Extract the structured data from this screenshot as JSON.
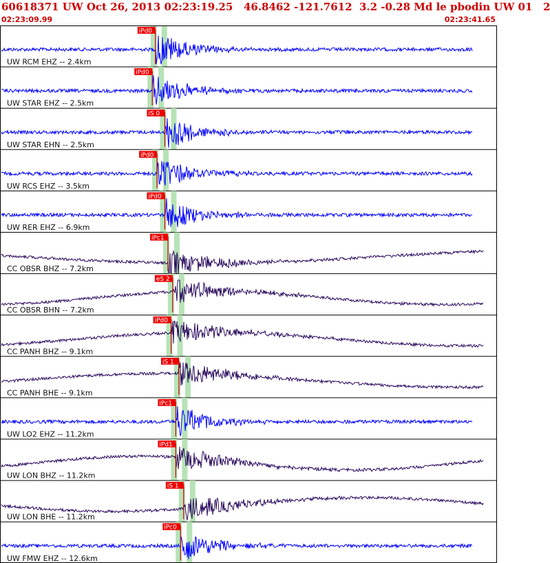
{
  "header": {
    "title": "60618371 UW Oct 26, 2013 02:23:19.25   46.8462 -121.7612  3.2 -0.28 Md le pbodin UW 01   2",
    "time_start": "02:23:09.99",
    "time_end": "02:23:41.65"
  },
  "colors": {
    "title": "#cc0000",
    "trace_short": "#0000ff",
    "trace_broadband": "#2a0a5e",
    "pick_box": "#ee0000",
    "pick_line": "#cc0000",
    "window_band": "#b7e3b7",
    "divider": "#000000"
  },
  "chart_data": {
    "type": "line",
    "x_unit": "time",
    "xlim": [
      "02:23:09.99",
      "02:23:41.65"
    ],
    "series": [
      {
        "name": "UW RCM EHZ -- 2.4km",
        "pick": "iPd0",
        "pick_time_s": 9.9,
        "kind": "short"
      },
      {
        "name": "UW STAR EHZ -- 2.5km",
        "pick": "iPd0",
        "pick_time_s": 9.7,
        "kind": "short"
      },
      {
        "name": "UW STAR EHN -- 2.5km",
        "pick": "iS 0",
        "pick_time_s": 10.5,
        "kind": "short"
      },
      {
        "name": "UW RCS EHZ -- 3.5km",
        "pick": "iPd0",
        "pick_time_s": 10.0,
        "kind": "short"
      },
      {
        "name": "UW RER EHZ -- 6.9km",
        "pick": "iPd0",
        "pick_time_s": 10.5,
        "kind": "short"
      },
      {
        "name": "CC OBSR BHZ -- 7.2km",
        "pick": "iPc1",
        "pick_time_s": 10.7,
        "kind": "broad"
      },
      {
        "name": "CC OBSR BHN -- 7.2km",
        "pick": "eS 2",
        "pick_time_s": 11.0,
        "kind": "broad"
      },
      {
        "name": "CC PANH BHZ -- 9.1km",
        "pick": "iPd0",
        "pick_time_s": 10.9,
        "kind": "broad"
      },
      {
        "name": "CC PANH BHE -- 9.1km",
        "pick": "iS 1",
        "pick_time_s": 11.4,
        "kind": "broad"
      },
      {
        "name": "UW LO2 EHZ -- 11.2km",
        "pick": "iPc1",
        "pick_time_s": 11.2,
        "kind": "short"
      },
      {
        "name": "UW LON BHZ -- 11.2km",
        "pick": "iPd1",
        "pick_time_s": 11.2,
        "kind": "broad"
      },
      {
        "name": "UW LON BHE -- 11.2km",
        "pick": "iS 1",
        "pick_time_s": 11.7,
        "kind": "broad"
      },
      {
        "name": "UW FMW EHZ -- 12.6km",
        "pick": "iPc0",
        "pick_time_s": 11.5,
        "kind": "short"
      }
    ]
  }
}
